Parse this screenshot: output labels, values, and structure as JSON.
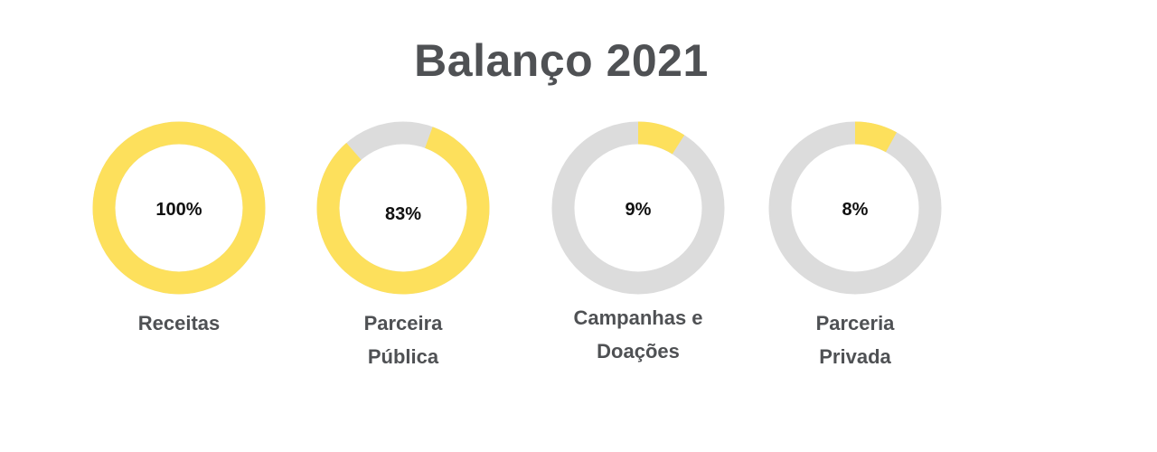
{
  "title": "Balanço 2021",
  "colors": {
    "filled": "#fde05c",
    "track": "#dcdcdc",
    "heading": "#4f5154",
    "value_text": "#111111"
  },
  "chart_data": {
    "type": "donut",
    "title": "Balanço 2021",
    "categories": [
      "Receitas",
      "Parceira Pública",
      "Campanhas e Doações",
      "Parceria Privada"
    ],
    "values": [
      100,
      83,
      9,
      8
    ],
    "unit": "%",
    "items": [
      {
        "label_lines": [
          "Receitas"
        ],
        "value": 100,
        "value_label": "100%"
      },
      {
        "label_lines": [
          "Parceira",
          "Pública"
        ],
        "value": 83,
        "value_label": "83%"
      },
      {
        "label_lines": [
          "Campanhas e",
          "Doações"
        ],
        "value": 9,
        "value_label": "9%"
      },
      {
        "label_lines": [
          "Parceria",
          "Privada"
        ],
        "value": 8,
        "value_label": "8%"
      }
    ]
  }
}
